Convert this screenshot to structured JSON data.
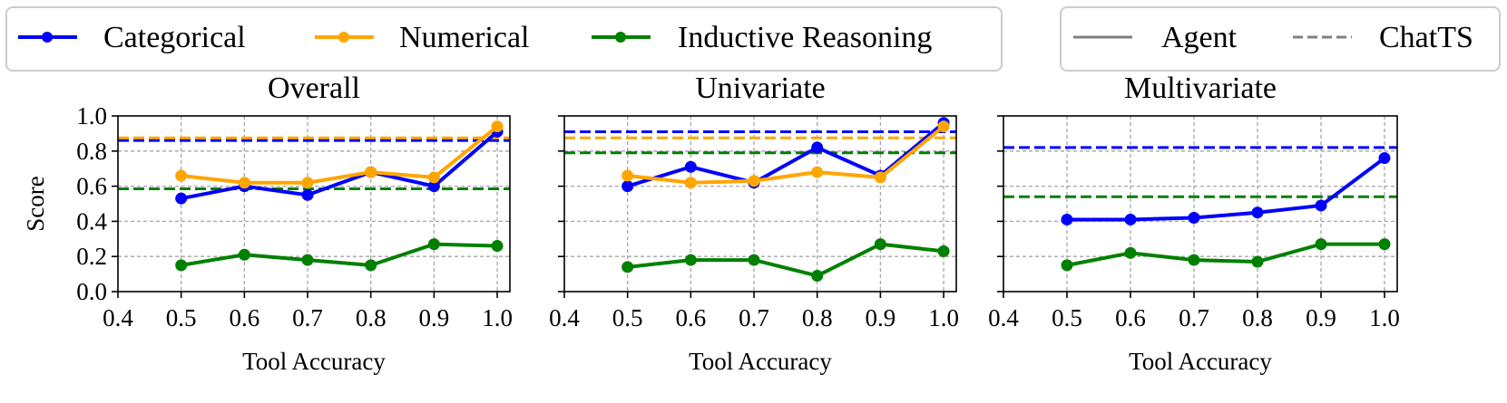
{
  "legend_categories": {
    "items": [
      {
        "label": "Categorical",
        "color": "#0000ff"
      },
      {
        "label": "Numerical",
        "color": "#ffa500"
      },
      {
        "label": "Inductive Reasoning",
        "color": "#008000"
      }
    ]
  },
  "legend_styles": {
    "items": [
      {
        "label": "Agent",
        "style": "solid"
      },
      {
        "label": "ChatTS",
        "style": "dashed"
      }
    ]
  },
  "chart_data": [
    {
      "type": "line",
      "title": "Overall",
      "xlabel": "Tool Accuracy",
      "ylabel": "Score",
      "x": [
        0.5,
        0.6,
        0.7,
        0.8,
        0.9,
        1.0
      ],
      "xlim": [
        0.4,
        1.02
      ],
      "ylim": [
        0.0,
        1.0
      ],
      "xticks": [
        "0.4",
        "0.5",
        "0.6",
        "0.7",
        "0.8",
        "0.9",
        "1.0"
      ],
      "yticks": [
        "0.0",
        "0.2",
        "0.4",
        "0.6",
        "0.8",
        "1.0"
      ],
      "grid": true,
      "series": [
        {
          "name": "Categorical",
          "color": "#0000ff",
          "values": [
            0.53,
            0.6,
            0.55,
            0.68,
            0.6,
            0.91
          ]
        },
        {
          "name": "Numerical",
          "color": "#ffa500",
          "values": [
            0.66,
            0.62,
            0.62,
            0.68,
            0.65,
            0.94
          ]
        },
        {
          "name": "Inductive Reasoning",
          "color": "#008000",
          "values": [
            0.15,
            0.21,
            0.18,
            0.15,
            0.27,
            0.26
          ]
        }
      ],
      "baselines": [
        {
          "name": "Categorical",
          "color": "#0000ff",
          "value": 0.86
        },
        {
          "name": "Numerical",
          "color": "#ffa500",
          "value": 0.875
        },
        {
          "name": "Inductive Reasoning",
          "color": "#008000",
          "value": 0.585
        }
      ]
    },
    {
      "type": "line",
      "title": "Univariate",
      "xlabel": "Tool Accuracy",
      "x": [
        0.5,
        0.6,
        0.7,
        0.8,
        0.9,
        1.0
      ],
      "xlim": [
        0.4,
        1.02
      ],
      "ylim": [
        0.0,
        1.0
      ],
      "xticks": [
        "0.4",
        "0.5",
        "0.6",
        "0.7",
        "0.8",
        "0.9",
        "1.0"
      ],
      "grid": true,
      "series": [
        {
          "name": "Categorical",
          "color": "#0000ff",
          "values": [
            0.6,
            0.71,
            0.62,
            0.82,
            0.66,
            0.96
          ]
        },
        {
          "name": "Numerical",
          "color": "#ffa500",
          "values": [
            0.66,
            0.62,
            0.63,
            0.68,
            0.65,
            0.94
          ]
        },
        {
          "name": "Inductive Reasoning",
          "color": "#008000",
          "values": [
            0.14,
            0.18,
            0.18,
            0.09,
            0.27,
            0.23
          ]
        }
      ],
      "baselines": [
        {
          "name": "Categorical",
          "color": "#0000ff",
          "value": 0.91
        },
        {
          "name": "Numerical",
          "color": "#ffa500",
          "value": 0.875
        },
        {
          "name": "Inductive Reasoning",
          "color": "#008000",
          "value": 0.79
        }
      ]
    },
    {
      "type": "line",
      "title": "Multivariate",
      "xlabel": "Tool Accuracy",
      "x": [
        0.5,
        0.6,
        0.7,
        0.8,
        0.9,
        1.0
      ],
      "xlim": [
        0.4,
        1.02
      ],
      "ylim": [
        0.0,
        1.0
      ],
      "xticks": [
        "0.4",
        "0.5",
        "0.6",
        "0.7",
        "0.8",
        "0.9",
        "1.0"
      ],
      "grid": true,
      "series": [
        {
          "name": "Categorical",
          "color": "#0000ff",
          "values": [
            0.41,
            0.41,
            0.42,
            0.45,
            0.49,
            0.76
          ]
        },
        {
          "name": "Inductive Reasoning",
          "color": "#008000",
          "values": [
            0.15,
            0.22,
            0.18,
            0.17,
            0.27,
            0.27
          ]
        }
      ],
      "baselines": [
        {
          "name": "Categorical",
          "color": "#0000ff",
          "value": 0.82
        },
        {
          "name": "Inductive Reasoning",
          "color": "#008000",
          "value": 0.54
        }
      ]
    }
  ]
}
